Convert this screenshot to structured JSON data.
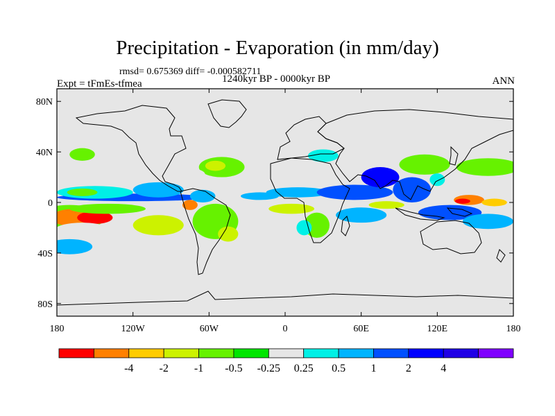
{
  "title": "Precipitation - Evaporation (in mm/day)",
  "stats_text": "rmsd= 0.675369 diff= -0.000582711",
  "period_text": "1240kyr BP - 0000kyr BP",
  "expt_text": "Expt = tFmEs-tfmea",
  "season_text": "ANN",
  "map": {
    "lon_range": [
      -180,
      180
    ],
    "lat_range": [
      -90,
      90
    ],
    "background_color": "#e6e6e6",
    "x_ticks": [
      {
        "lon": -180,
        "label": "180"
      },
      {
        "lon": -120,
        "label": "120W"
      },
      {
        "lon": -60,
        "label": "60W"
      },
      {
        "lon": 0,
        "label": "0"
      },
      {
        "lon": 60,
        "label": "60E"
      },
      {
        "lon": 120,
        "label": "120E"
      },
      {
        "lon": 180,
        "label": "180"
      }
    ],
    "y_ticks": [
      {
        "lat": 80,
        "label": "80N"
      },
      {
        "lat": 40,
        "label": "40N"
      },
      {
        "lat": 0,
        "label": "0"
      },
      {
        "lat": -40,
        "label": "40S"
      },
      {
        "lat": -80,
        "label": "80S"
      }
    ],
    "anomalies": [
      {
        "lon": -170,
        "lat": -12,
        "rlon": 28,
        "rlat": 10,
        "level": 4
      },
      {
        "lon": -165,
        "lat": -12,
        "rlon": 20,
        "rlat": 7,
        "level": 1
      },
      {
        "lon": -150,
        "lat": -12,
        "rlon": 14,
        "rlat": 5,
        "level": 0
      },
      {
        "lon": -160,
        "lat": -22,
        "rlon": 22,
        "rlat": 6,
        "level": 6
      },
      {
        "lon": -120,
        "lat": 4,
        "rlon": 60,
        "rlat": 3,
        "level": 9
      },
      {
        "lon": -150,
        "lat": 8,
        "rlon": 30,
        "rlat": 5,
        "level": 7
      },
      {
        "lon": -100,
        "lat": 10,
        "rlon": 20,
        "rlat": 6,
        "level": 8
      },
      {
        "lon": -160,
        "lat": 8,
        "rlon": 12,
        "rlat": 3,
        "level": 4
      },
      {
        "lon": -140,
        "lat": -5,
        "rlon": 30,
        "rlat": 4,
        "level": 4
      },
      {
        "lon": -100,
        "lat": -18,
        "rlon": 20,
        "rlat": 8,
        "level": 3
      },
      {
        "lon": -170,
        "lat": -35,
        "rlon": 18,
        "rlat": 6,
        "level": 8
      },
      {
        "lon": -50,
        "lat": 28,
        "rlon": 18,
        "rlat": 8,
        "level": 4
      },
      {
        "lon": -55,
        "lat": 29,
        "rlon": 8,
        "rlat": 4,
        "level": 3
      },
      {
        "lon": -160,
        "lat": 38,
        "rlon": 10,
        "rlat": 5,
        "level": 4
      },
      {
        "lon": -75,
        "lat": 22,
        "rlon": 12,
        "rlat": 5,
        "level": 6
      },
      {
        "lon": -65,
        "lat": 5,
        "rlon": 10,
        "rlat": 5,
        "level": 8
      },
      {
        "lon": -75,
        "lat": -2,
        "rlon": 6,
        "rlat": 4,
        "level": 1
      },
      {
        "lon": -55,
        "lat": -15,
        "rlon": 18,
        "rlat": 14,
        "level": 4
      },
      {
        "lon": -45,
        "lat": -25,
        "rlon": 8,
        "rlat": 6,
        "level": 3
      },
      {
        "lon": -20,
        "lat": 5,
        "rlon": 15,
        "rlat": 3,
        "level": 8
      },
      {
        "lon": 10,
        "lat": 8,
        "rlon": 25,
        "rlat": 4,
        "level": 8
      },
      {
        "lon": 5,
        "lat": -5,
        "rlon": 18,
        "rlat": 4,
        "level": 3
      },
      {
        "lon": 25,
        "lat": -18,
        "rlon": 10,
        "rlat": 10,
        "level": 4
      },
      {
        "lon": 15,
        "lat": -20,
        "rlon": 6,
        "rlat": 6,
        "level": 7
      },
      {
        "lon": 30,
        "lat": 37,
        "rlon": 12,
        "rlat": 5,
        "level": 7
      },
      {
        "lon": 55,
        "lat": 8,
        "rlon": 30,
        "rlat": 6,
        "level": 9
      },
      {
        "lon": 60,
        "lat": -10,
        "rlon": 20,
        "rlat": 6,
        "level": 8
      },
      {
        "lon": 75,
        "lat": 20,
        "rlon": 15,
        "rlat": 8,
        "level": 10
      },
      {
        "lon": 100,
        "lat": 10,
        "rlon": 15,
        "rlat": 10,
        "level": 9
      },
      {
        "lon": 110,
        "lat": 30,
        "rlon": 20,
        "rlat": 8,
        "level": 4
      },
      {
        "lon": 160,
        "lat": 28,
        "rlon": 25,
        "rlat": 7,
        "level": 4
      },
      {
        "lon": 145,
        "lat": 2,
        "rlon": 12,
        "rlat": 4,
        "level": 1
      },
      {
        "lon": 140,
        "lat": 1,
        "rlon": 6,
        "rlat": 2,
        "level": 0
      },
      {
        "lon": 165,
        "lat": 0,
        "rlon": 10,
        "rlat": 3,
        "level": 2
      },
      {
        "lon": 130,
        "lat": -8,
        "rlon": 25,
        "rlat": 6,
        "level": 9
      },
      {
        "lon": 160,
        "lat": -15,
        "rlon": 20,
        "rlat": 6,
        "level": 8
      },
      {
        "lon": 80,
        "lat": -2,
        "rlon": 14,
        "rlat": 3,
        "level": 3
      },
      {
        "lon": 120,
        "lat": 18,
        "rlon": 6,
        "rlat": 5,
        "level": 7
      }
    ]
  },
  "colorbar": {
    "colors": [
      "#ff0000",
      "#ff8000",
      "#ffcc00",
      "#ccf200",
      "#66f200",
      "#00e600",
      "#e6e6e6",
      "#00f0e6",
      "#00b4ff",
      "#0050ff",
      "#0000ff",
      "#2000e6",
      "#8000ff"
    ],
    "labels": [
      "-4",
      "-2",
      "-1",
      "-0.5",
      "-0.25",
      "0.25",
      "0.5",
      "1",
      "2",
      "4"
    ],
    "label_offset": 1
  }
}
